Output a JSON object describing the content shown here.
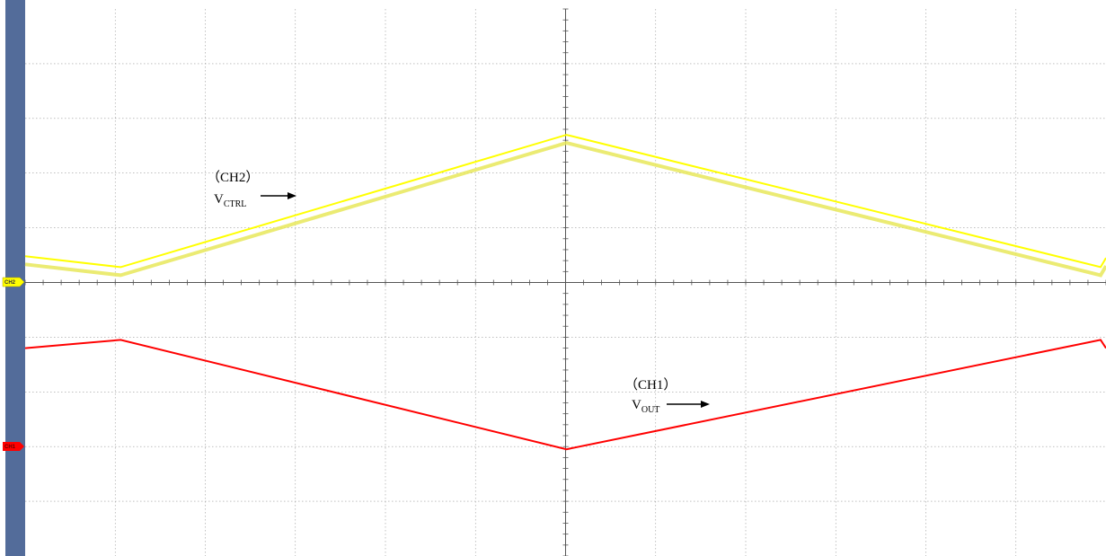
{
  "chart_data": {
    "type": "line",
    "grid": true,
    "x_divisions": 12,
    "y_divisions": 10,
    "xlim": [
      0,
      12
    ],
    "ylim": [
      -5,
      5
    ],
    "series": [
      {
        "name": "CH2",
        "color": "#ffff00",
        "x": [
          0,
          1.06,
          6.01,
          11.94,
          12
        ],
        "y": [
          0.48,
          0.28,
          2.7,
          0.28,
          0.45
        ]
      },
      {
        "name": "CH1",
        "color": "#ff0000",
        "x": [
          0,
          1.06,
          6.01,
          11.94,
          12
        ],
        "y": [
          -1.2,
          -1.05,
          -3.05,
          -1.05,
          -1.2
        ]
      }
    ],
    "annotations": [
      {
        "paren_open": "（",
        "channel": "CH2",
        "paren_close": "）",
        "v": "V",
        "sub": "CTRL"
      },
      {
        "paren_open": "（",
        "channel": "CH1",
        "paren_close": "）",
        "v": "V",
        "sub": "OUT"
      }
    ],
    "markers": [
      {
        "label": "CH2",
        "color": "#ffff00"
      },
      {
        "label": "CH1",
        "color": "#ff0000"
      }
    ]
  }
}
